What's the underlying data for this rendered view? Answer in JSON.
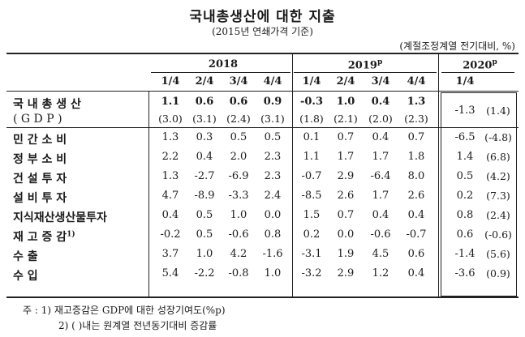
{
  "title": "국내총생산에 대한 지출",
  "subtitle": "(2015년 연쇄가격 기준)",
  "unit": "(계절조정계열 전기대비, %)",
  "years": [
    {
      "label": "2018",
      "sup": ""
    },
    {
      "label": "2019",
      "sup": "p"
    },
    {
      "label": "2020",
      "sup": "p"
    }
  ],
  "quarters": [
    "1/4",
    "2/4",
    "3/4",
    "4/4",
    "1/4",
    "2/4",
    "3/4",
    "4/4",
    "1/4"
  ],
  "rows": [
    {
      "label": "국 내 총 생 산",
      "label2": "( G D P )",
      "values": [
        "1.1",
        "0.6",
        "0.6",
        "0.9",
        "-0.3",
        "1.0",
        "0.4",
        "1.3",
        "-1.3"
      ],
      "paren": [
        "(3.0)",
        "(3.1)",
        "(2.4)",
        "(3.1)",
        "(1.8)",
        "(2.1)",
        "(2.0)",
        "(2.3)",
        "(1.4)"
      ]
    },
    {
      "label": "민 간 소 비",
      "values": [
        "1.3",
        "0.3",
        "0.5",
        "0.5",
        "0.1",
        "0.7",
        "0.4",
        "0.7",
        "-6.5",
        "(-4.8)"
      ]
    },
    {
      "label": "정 부 소 비",
      "values": [
        "2.2",
        "0.4",
        "2.0",
        "2.3",
        "1.1",
        "1.7",
        "1.7",
        "1.8",
        "1.4",
        "(6.8)"
      ]
    },
    {
      "label": "건 설 투 자",
      "values": [
        "1.3",
        "-2.7",
        "-6.9",
        "2.3",
        "-0.7",
        "2.9",
        "-6.4",
        "8.0",
        "0.5",
        "(4.2)"
      ]
    },
    {
      "label": "설 비 투 자",
      "values": [
        "4.7",
        "-8.9",
        "-3.3",
        "2.4",
        "-8.5",
        "2.6",
        "1.7",
        "2.6",
        "0.2",
        "(7.3)"
      ]
    },
    {
      "label": "지식재산생산물투자",
      "values": [
        "0.4",
        "0.5",
        "1.0",
        "0.0",
        "1.5",
        "0.7",
        "0.4",
        "0.4",
        "0.8",
        "(2.4)"
      ]
    },
    {
      "label": "재 고 증 감",
      "sup": "1)",
      "values": [
        "-0.2",
        "0.5",
        "-0.6",
        "0.8",
        "0.2",
        "0.0",
        "-0.6",
        "-0.7",
        "0.6",
        "(-0.6)"
      ]
    },
    {
      "label": "수 출",
      "values": [
        "3.7",
        "1.0",
        "4.2",
        "-1.6",
        "-3.1",
        "1.9",
        "4.5",
        "0.6",
        "-1.4",
        "(5.6)"
      ]
    },
    {
      "label": "수 입",
      "values": [
        "5.4",
        "-2.2",
        "-0.8",
        "1.0",
        "-3.2",
        "2.9",
        "1.2",
        "0.4",
        "-3.6",
        "(0.9)"
      ]
    }
  ],
  "notes": [
    "주 : 1) 재고증감은 GDP에 대한 성장기여도(%p)",
    "2) ( )내는 원계열 전년동기대비 증감률"
  ]
}
